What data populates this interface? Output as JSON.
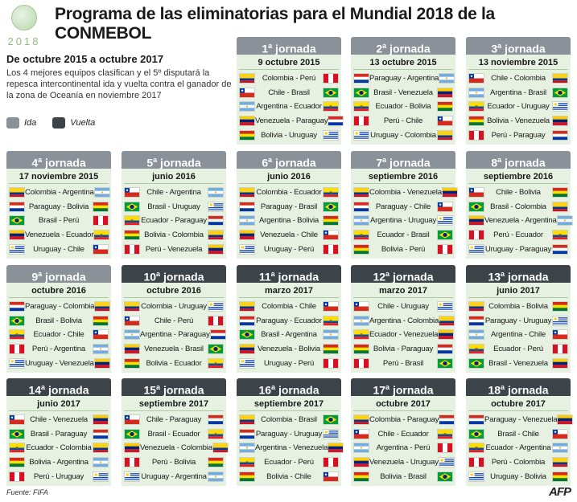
{
  "header": {
    "logo_year": "2018",
    "title": "Programa de las eliminatorias para el Mundial 2018 de la CONMEBOL",
    "period": "De octubre 2015 a octubre 2017",
    "description": "Los 4 mejores equipos clasifican y el 5º disputará la repesca intercontinental ida y vuelta contra el ganador de la zona de Oceanía en noviembre 2017"
  },
  "legend": {
    "ida": "Ida",
    "vuelta": "Vuelta"
  },
  "colors": {
    "ida": "#8a9198",
    "vuelta": "#3c4349",
    "panel": "#e6f1e1"
  },
  "jornadas": [
    {
      "num": "1",
      "ord": "a",
      "suffix": " jornada",
      "type": "ida",
      "date": "9 octubre 2015",
      "matches": [
        {
          "label": "Colombia - Perú",
          "home": "colombia",
          "away": "peru"
        },
        {
          "label": "Chile - Brasil",
          "home": "chile",
          "away": "brasil"
        },
        {
          "label": "Argentina - Ecuador",
          "home": "argentina",
          "away": "ecuador"
        },
        {
          "label": "Venezuela - Paraguay",
          "home": "venezuela",
          "away": "paraguay"
        },
        {
          "label": "Bolivia - Uruguay",
          "home": "bolivia",
          "away": "uruguay"
        }
      ]
    },
    {
      "num": "2",
      "ord": "a",
      "suffix": " jornada",
      "type": "ida",
      "date": "13 octubre 2015",
      "matches": [
        {
          "label": "Paraguay - Argentina",
          "home": "paraguay",
          "away": "argentina"
        },
        {
          "label": "Brasil - Venezuela",
          "home": "brasil",
          "away": "venezuela"
        },
        {
          "label": "Ecuador - Bolivia",
          "home": "ecuador",
          "away": "bolivia"
        },
        {
          "label": "Perú - Chile",
          "home": "peru",
          "away": "chile"
        },
        {
          "label": "Uruguay - Colombia",
          "home": "uruguay",
          "away": "colombia"
        }
      ]
    },
    {
      "num": "3",
      "ord": "a",
      "suffix": " jornada",
      "type": "ida",
      "date": "13 noviembre 2015",
      "matches": [
        {
          "label": "Chile - Colombia",
          "home": "chile",
          "away": "colombia"
        },
        {
          "label": "Argentina - Brasil",
          "home": "argentina",
          "away": "brasil"
        },
        {
          "label": "Ecuador - Uruguay",
          "home": "ecuador",
          "away": "uruguay"
        },
        {
          "label": "Bolivia - Venezuela",
          "home": "bolivia",
          "away": "venezuela"
        },
        {
          "label": "Perú - Paraguay",
          "home": "peru",
          "away": "paraguay"
        }
      ]
    },
    {
      "num": "4",
      "ord": "a",
      "suffix": " jornada",
      "type": "ida",
      "date": "17 noviembre 2015",
      "matches": [
        {
          "label": "Colombia - Argentina",
          "home": "colombia",
          "away": "argentina"
        },
        {
          "label": "Paraguay - Bolivia",
          "home": "paraguay",
          "away": "bolivia"
        },
        {
          "label": "Brasil - Perú",
          "home": "brasil",
          "away": "peru"
        },
        {
          "label": "Venezuela - Ecuador",
          "home": "venezuela",
          "away": "ecuador"
        },
        {
          "label": "Uruguay - Chile",
          "home": "uruguay",
          "away": "chile"
        }
      ]
    },
    {
      "num": "5",
      "ord": "a",
      "suffix": " jornada",
      "type": "ida",
      "date": "junio 2016",
      "matches": [
        {
          "label": "Chile - Argentina",
          "home": "chile",
          "away": "argentina"
        },
        {
          "label": "Brasil - Uruguay",
          "home": "brasil",
          "away": "uruguay"
        },
        {
          "label": "Ecuador - Paraguay",
          "home": "ecuador",
          "away": "paraguay"
        },
        {
          "label": "Bolivia - Colombia",
          "home": "bolivia",
          "away": "colombia"
        },
        {
          "label": "Perú - Venezuela",
          "home": "peru",
          "away": "venezuela"
        }
      ]
    },
    {
      "num": "6",
      "ord": "a",
      "suffix": " jornada",
      "type": "ida",
      "date": "junio 2016",
      "matches": [
        {
          "label": "Colombia - Ecuador",
          "home": "colombia",
          "away": "ecuador"
        },
        {
          "label": "Paraguay - Brasil",
          "home": "paraguay",
          "away": "brasil"
        },
        {
          "label": "Argentina - Bolivia",
          "home": "argentina",
          "away": "bolivia"
        },
        {
          "label": "Venezuela - Chile",
          "home": "venezuela",
          "away": "chile"
        },
        {
          "label": "Uruguay - Perú",
          "home": "uruguay",
          "away": "peru"
        }
      ]
    },
    {
      "num": "7",
      "ord": "a",
      "suffix": " jornada",
      "type": "ida",
      "date": "septiembre 2016",
      "matches": [
        {
          "label": "Colombia - Venezuela",
          "home": "colombia",
          "away": "venezuela"
        },
        {
          "label": "Paraguay - Chile",
          "home": "paraguay",
          "away": "chile"
        },
        {
          "label": "Argentina - Uruguay",
          "home": "argentina",
          "away": "uruguay"
        },
        {
          "label": "Ecuador - Brasil",
          "home": "ecuador",
          "away": "brasil"
        },
        {
          "label": "Bolivia - Perú",
          "home": "bolivia",
          "away": "peru"
        }
      ]
    },
    {
      "num": "8",
      "ord": "a",
      "suffix": " jornada",
      "type": "ida",
      "date": "septiembre 2016",
      "matches": [
        {
          "label": "Chile - Bolivia",
          "home": "chile",
          "away": "bolivia"
        },
        {
          "label": "Brasil - Colombia",
          "home": "brasil",
          "away": "colombia"
        },
        {
          "label": "Venezuela - Argentina",
          "home": "venezuela",
          "away": "argentina"
        },
        {
          "label": "Perú - Ecuador",
          "home": "peru",
          "away": "ecuador"
        },
        {
          "label": "Uruguay - Paraguay",
          "home": "uruguay",
          "away": "paraguay"
        }
      ]
    },
    {
      "num": "9",
      "ord": "a",
      "suffix": " jornada",
      "type": "ida",
      "date": "octubre 2016",
      "matches": [
        {
          "label": "Paraguay - Colombia",
          "home": "paraguay",
          "away": "colombia"
        },
        {
          "label": "Brasil - Bolivia",
          "home": "brasil",
          "away": "bolivia"
        },
        {
          "label": "Ecuador - Chile",
          "home": "ecuador",
          "away": "chile"
        },
        {
          "label": "Perú - Argentina",
          "home": "peru",
          "away": "argentina"
        },
        {
          "label": "Uruguay - Venezuela",
          "home": "uruguay",
          "away": "venezuela"
        }
      ]
    },
    {
      "num": "10",
      "ord": "a",
      "suffix": " jornada",
      "type": "vuelta",
      "date": "octubre 2016",
      "matches": [
        {
          "label": "Colombia - Uruguay",
          "home": "colombia",
          "away": "uruguay"
        },
        {
          "label": "Chile - Perú",
          "home": "chile",
          "away": "peru"
        },
        {
          "label": "Argentina - Paraguay",
          "home": "argentina",
          "away": "paraguay"
        },
        {
          "label": "Venezuela - Brasil",
          "home": "venezuela",
          "away": "brasil"
        },
        {
          "label": "Bolivia - Ecuador",
          "home": "bolivia",
          "away": "ecuador"
        }
      ]
    },
    {
      "num": "11",
      "ord": "a",
      "suffix": " jornada",
      "type": "vuelta",
      "date": "marzo 2017",
      "matches": [
        {
          "label": "Colombia - Chile",
          "home": "colombia",
          "away": "chile"
        },
        {
          "label": "Paraguay - Ecuador",
          "home": "paraguay",
          "away": "ecuador"
        },
        {
          "label": "Brasil - Argentina",
          "home": "brasil",
          "away": "argentina"
        },
        {
          "label": "Venezuela - Bolivia",
          "home": "venezuela",
          "away": "bolivia"
        },
        {
          "label": "Uruguay - Perú",
          "home": "uruguay",
          "away": "peru"
        }
      ]
    },
    {
      "num": "12",
      "ord": "a",
      "suffix": " jornada",
      "type": "vuelta",
      "date": "marzo 2017",
      "matches": [
        {
          "label": "Chile - Uruguay",
          "home": "chile",
          "away": "uruguay"
        },
        {
          "label": "Argentina - Colombia",
          "home": "argentina",
          "away": "colombia"
        },
        {
          "label": "Ecuador - Venezuela",
          "home": "ecuador",
          "away": "venezuela"
        },
        {
          "label": "Bolivia - Paraguay",
          "home": "bolivia",
          "away": "paraguay"
        },
        {
          "label": "Perú - Brasil",
          "home": "peru",
          "away": "brasil"
        }
      ]
    },
    {
      "num": "13",
      "ord": "a",
      "suffix": " jornada",
      "type": "vuelta",
      "date": "junio 2017",
      "matches": [
        {
          "label": "Colombia - Bolivia",
          "home": "colombia",
          "away": "bolivia"
        },
        {
          "label": "Paraguay - Uruguay",
          "home": "paraguay",
          "away": "uruguay"
        },
        {
          "label": "Argentina - Chile",
          "home": "argentina",
          "away": "chile"
        },
        {
          "label": "Ecuador - Perú",
          "home": "ecuador",
          "away": "peru"
        },
        {
          "label": "Brasil - Venezuela",
          "home": "brasil",
          "away": "venezuela"
        }
      ]
    },
    {
      "num": "14",
      "ord": "a",
      "suffix": " jornada",
      "type": "vuelta",
      "date": "junio 2017",
      "matches": [
        {
          "label": "Chile - Venezuela",
          "home": "chile",
          "away": "venezuela"
        },
        {
          "label": "Brasil - Paraguay",
          "home": "brasil",
          "away": "paraguay"
        },
        {
          "label": "Ecuador - Colombia",
          "home": "ecuador",
          "away": "colombia"
        },
        {
          "label": "Bolivia - Argentina",
          "home": "bolivia",
          "away": "argentina"
        },
        {
          "label": "Perú - Uruguay",
          "home": "peru",
          "away": "uruguay"
        }
      ]
    },
    {
      "num": "15",
      "ord": "a",
      "suffix": " jornada",
      "type": "vuelta",
      "date": "septiembre 2017",
      "matches": [
        {
          "label": "Chile - Paraguay",
          "home": "chile",
          "away": "paraguay"
        },
        {
          "label": "Brasil - Ecuador",
          "home": "brasil",
          "away": "ecuador"
        },
        {
          "label": "Venezuela - Colombia",
          "home": "venezuela",
          "away": "colombia"
        },
        {
          "label": "Perú - Bolivia",
          "home": "peru",
          "away": "bolivia"
        },
        {
          "label": "Uruguay - Argentina",
          "home": "uruguay",
          "away": "argentina"
        }
      ]
    },
    {
      "num": "16",
      "ord": "a",
      "suffix": " jornada",
      "type": "vuelta",
      "date": "septiembre 2017",
      "matches": [
        {
          "label": "Colombia - Brasil",
          "home": "colombia",
          "away": "brasil"
        },
        {
          "label": "Paraguay - Uruguay",
          "home": "paraguay",
          "away": "uruguay"
        },
        {
          "label": "Argentina - Venezuela",
          "home": "argentina",
          "away": "venezuela"
        },
        {
          "label": "Ecuador - Perú",
          "home": "ecuador",
          "away": "peru"
        },
        {
          "label": "Bolivia - Chile",
          "home": "bolivia",
          "away": "chile"
        }
      ]
    },
    {
      "num": "17",
      "ord": "a",
      "suffix": " jornada",
      "type": "vuelta",
      "date": "octubre 2017",
      "matches": [
        {
          "label": "Colombia - Paraguay",
          "home": "colombia",
          "away": "paraguay"
        },
        {
          "label": "Chile - Ecuador",
          "home": "chile",
          "away": "ecuador"
        },
        {
          "label": "Argentina - Perú",
          "home": "argentina",
          "away": "peru"
        },
        {
          "label": "Venezuela - Uruguay",
          "home": "venezuela",
          "away": "uruguay"
        },
        {
          "label": "Bolivia - Brasil",
          "home": "bolivia",
          "away": "brasil"
        }
      ]
    },
    {
      "num": "18",
      "ord": "a",
      "suffix": " jornada",
      "type": "vuelta",
      "date": "octubre 2017",
      "matches": [
        {
          "label": "Paraguay - Venezuela",
          "home": "paraguay",
          "away": "venezuela"
        },
        {
          "label": "Brasil - Chile",
          "home": "brasil",
          "away": "chile"
        },
        {
          "label": "Ecuador - Argentina",
          "home": "ecuador",
          "away": "argentina"
        },
        {
          "label": "Perú - Colombia",
          "home": "peru",
          "away": "colombia"
        },
        {
          "label": "Uruguay - Bolivia",
          "home": "uruguay",
          "away": "bolivia"
        }
      ]
    }
  ],
  "footer": {
    "source": "Fuente: FIFA",
    "credit": "AFP"
  }
}
